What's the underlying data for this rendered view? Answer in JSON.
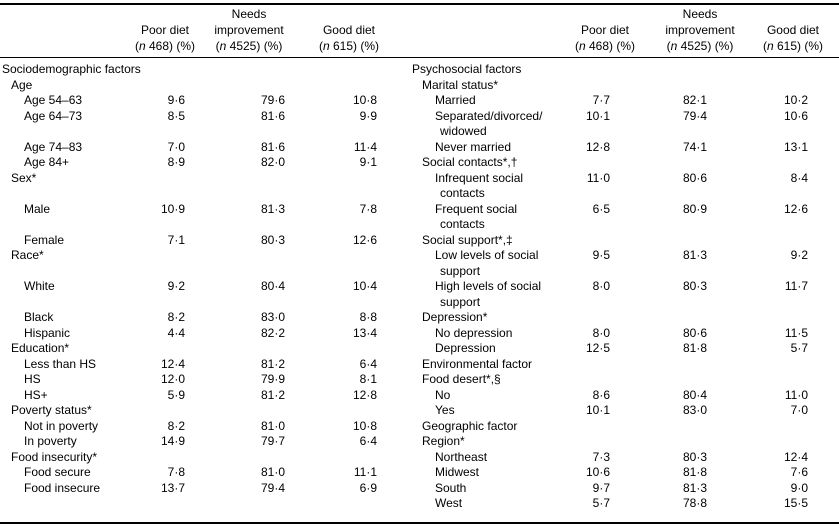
{
  "page": {
    "background": "#ffffff",
    "text_color": "#000000",
    "rule_color": "#000000"
  },
  "table": {
    "header": {
      "columns": [
        {
          "line1": "",
          "line2": "Poor diet",
          "sub_open": "(",
          "sub_n": "n",
          "sub_rest": " 468) (%)"
        },
        {
          "line1": "Needs",
          "line2": "improvement",
          "sub_open": "(",
          "sub_n": "n",
          "sub_rest": " 4525) (%)"
        },
        {
          "line1": "",
          "line2": "Good diet",
          "sub_open": "(",
          "sub_n": "n",
          "sub_rest": " 615) (%)"
        }
      ]
    },
    "left_section_title": "Sociodemographic factors",
    "right_section_title": "Psychosocial factors",
    "rows": [
      {
        "ll": "Sociodemographic factors",
        "li": 0,
        "rl": "Psychosocial factors",
        "ri": 0
      },
      {
        "ll": "Age",
        "li": 1,
        "rl": "Marital status*",
        "ri": 1
      },
      {
        "ll": "Age 54–63",
        "li": 2,
        "lv": [
          "9·6",
          "79·6",
          "10·8"
        ],
        "rl": "Married",
        "ri": 2,
        "rv": [
          "7·7",
          "82·1",
          "10·2"
        ]
      },
      {
        "ll": "Age 64–73",
        "li": 2,
        "lv": [
          "8·5",
          "81·6",
          "9·9"
        ],
        "rl": "Separated/divorced/",
        "ri": 2,
        "rv": [
          "10·1",
          "79·4",
          "10·6"
        ]
      },
      {
        "rl": "widowed",
        "ri": 3
      },
      {
        "ll": "Age 74–83",
        "li": 2,
        "lv": [
          "7·0",
          "81·6",
          "11·4"
        ],
        "rl": "Never married",
        "ri": 2,
        "rv": [
          "12·8",
          "74·1",
          "13·1"
        ]
      },
      {
        "ll": "Age 84+",
        "li": 2,
        "lv": [
          "8·9",
          "82·0",
          "9·1"
        ],
        "rl": "Social contacts*,†",
        "ri": 1
      },
      {
        "ll": "Sex*",
        "li": 1,
        "rl": "Infrequent social",
        "ri": 2,
        "rv": [
          "11·0",
          "80·6",
          "8·4"
        ]
      },
      {
        "rl": "contacts",
        "ri": 3
      },
      {
        "ll": "Male",
        "li": 2,
        "lv": [
          "10·9",
          "81·3",
          "7·8"
        ],
        "rl": "Frequent social",
        "ri": 2,
        "rv": [
          "6·5",
          "80·9",
          "12·6"
        ]
      },
      {
        "rl": "contacts",
        "ri": 3
      },
      {
        "ll": "Female",
        "li": 2,
        "lv": [
          "7·1",
          "80·3",
          "12·6"
        ],
        "rl": "Social support*,‡",
        "ri": 1
      },
      {
        "ll": "Race*",
        "li": 1,
        "rl": "Low levels of social",
        "ri": 2,
        "rv": [
          "9·5",
          "81·3",
          "9·2"
        ]
      },
      {
        "rl": "support",
        "ri": 3
      },
      {
        "ll": "White",
        "li": 2,
        "lv": [
          "9·2",
          "80·4",
          "10·4"
        ],
        "rl": "High levels of social",
        "ri": 2,
        "rv": [
          "8·0",
          "80·3",
          "11·7"
        ]
      },
      {
        "rl": "support",
        "ri": 3
      },
      {
        "ll": "Black",
        "li": 2,
        "lv": [
          "8·2",
          "83·0",
          "8·8"
        ],
        "rl": "Depression*",
        "ri": 1
      },
      {
        "ll": "Hispanic",
        "li": 2,
        "lv": [
          "4·4",
          "82·2",
          "13·4"
        ],
        "rl": "No depression",
        "ri": 2,
        "rv": [
          "8·0",
          "80·6",
          "11·5"
        ]
      },
      {
        "ll": "Education*",
        "li": 1,
        "rl": "Depression",
        "ri": 2,
        "rv": [
          "12·5",
          "81·8",
          "5·7"
        ]
      },
      {
        "ll": "Less than HS",
        "li": 2,
        "lv": [
          "12·4",
          "81·2",
          "6·4"
        ],
        "rl": "Environmental factor",
        "ri": 1
      },
      {
        "ll": "HS",
        "li": 2,
        "lv": [
          "12·0",
          "79·9",
          "8·1"
        ],
        "rl": "Food desert*,§",
        "ri": 1
      },
      {
        "ll": "HS+",
        "li": 2,
        "lv": [
          "5·9",
          "81·2",
          "12·8"
        ],
        "rl": "No",
        "ri": 2,
        "rv": [
          "8·6",
          "80·4",
          "11·0"
        ]
      },
      {
        "ll": "Poverty status*",
        "li": 1,
        "rl": "Yes",
        "ri": 2,
        "rv": [
          "10·1",
          "83·0",
          "7·0"
        ]
      },
      {
        "ll": "Not in poverty",
        "li": 2,
        "lv": [
          "8·2",
          "81·0",
          "10·8"
        ],
        "rl": "Geographic factor",
        "ri": 1
      },
      {
        "ll": "In poverty",
        "li": 2,
        "lv": [
          "14·9",
          "79·7",
          "6·4"
        ],
        "rl": "Region*",
        "ri": 1
      },
      {
        "ll": "Food insecurity*",
        "li": 1,
        "rl": "Northeast",
        "ri": 2,
        "rv": [
          "7·3",
          "80·3",
          "12·4"
        ]
      },
      {
        "ll": "Food secure",
        "li": 2,
        "lv": [
          "7·8",
          "81·0",
          "11·1"
        ],
        "rl": "Midwest",
        "ri": 2,
        "rv": [
          "10·6",
          "81·8",
          "7·6"
        ]
      },
      {
        "ll": "Food insecure",
        "li": 2,
        "lv": [
          "13·7",
          "79·4",
          "6·9"
        ],
        "rl": "South",
        "ri": 2,
        "rv": [
          "9·7",
          "81·3",
          "9·0"
        ]
      },
      {
        "rl": "West",
        "ri": 2,
        "rv": [
          "5·7",
          "78·8",
          "15·5"
        ]
      }
    ]
  }
}
